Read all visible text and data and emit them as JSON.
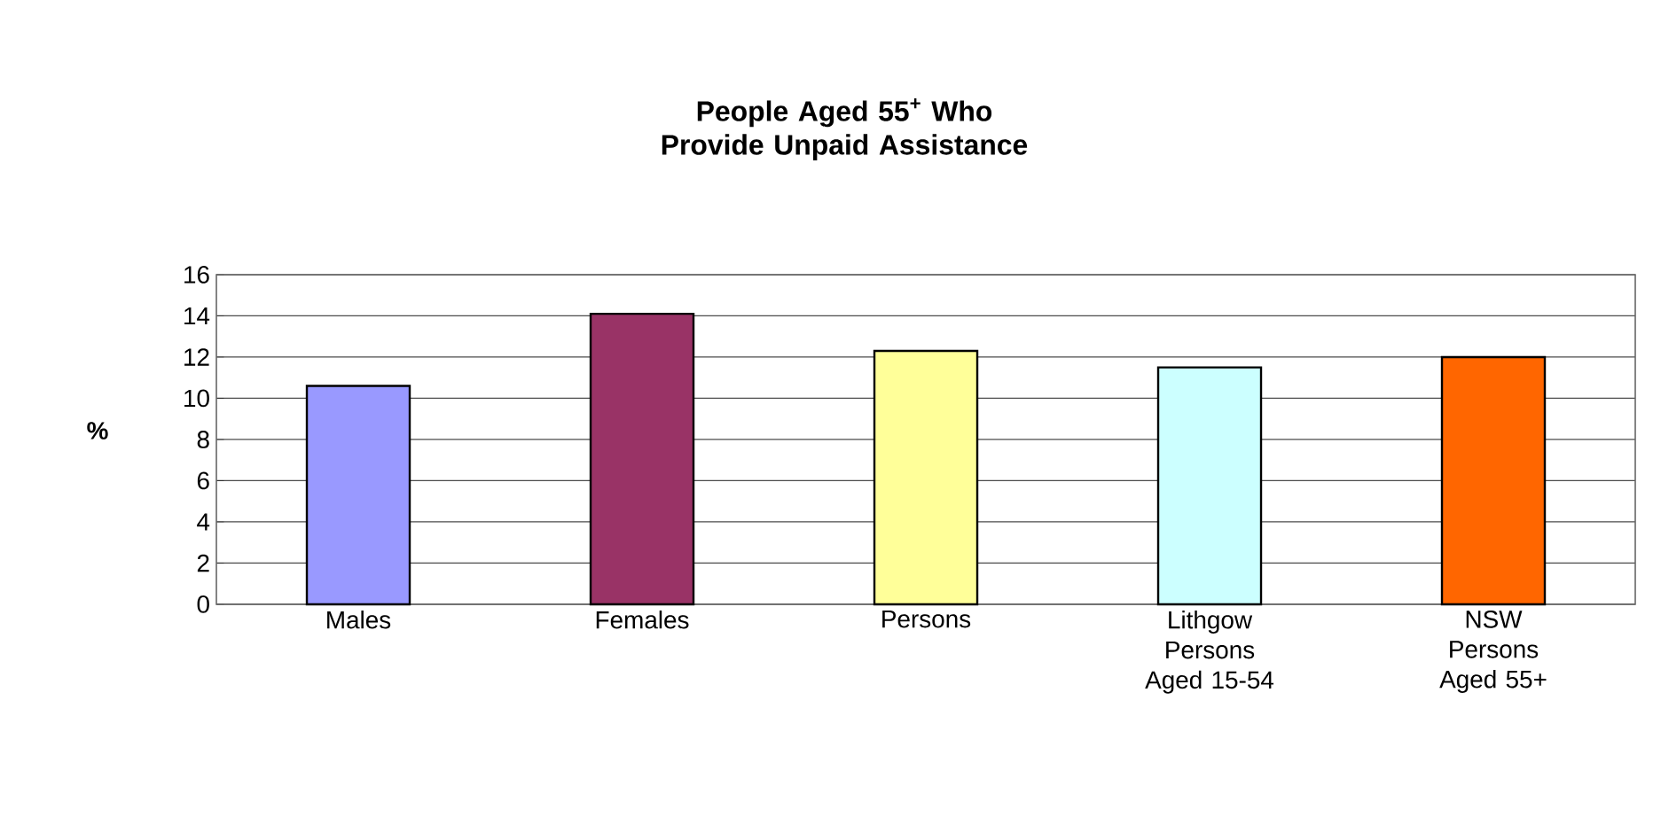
{
  "chart_data": {
    "type": "bar",
    "title": "People Aged 55$^{+}$ Who Provide Unpaid Assistance",
    "ylabel": "%",
    "categories": [
      "Males",
      "Females",
      "Persons",
      "Lithgow Persons Aged 15-54",
      "NSW Persons Aged 55+"
    ],
    "values": [
      10.6,
      14.1,
      12.3,
      11.5,
      12.0
    ],
    "colors": [
      "#9999ff",
      "#993366",
      "#ffff99",
      "#ccffff",
      "#ff6600"
    ],
    "ylim": [
      0,
      16
    ],
    "yticks": [
      0,
      2,
      4,
      6,
      8,
      10,
      12,
      14,
      16
    ],
    "grid": "y"
  }
}
